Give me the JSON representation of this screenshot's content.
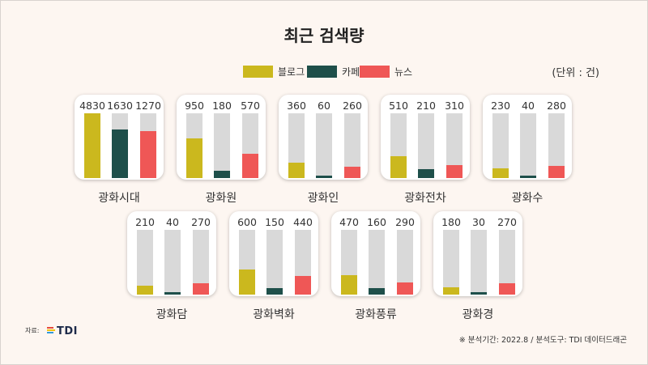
{
  "colors": {
    "blog": "#cbb81e",
    "cafe": "#1e4f4a",
    "news": "#ef5756",
    "track": "#d9d9d9",
    "background": "#fdf6f1"
  },
  "source_label": "자료:",
  "logo_text": "TDI",
  "footnote": "※ 분석기간:  2022.8  / 분석도구: TDI 데이터드래곤",
  "chart_data": {
    "type": "bar",
    "title": "최근 검색량",
    "unit": "(단위 : 건)",
    "legend": [
      "블로그",
      "카페",
      "뉴스"
    ],
    "ylim": [
      0,
      4830
    ],
    "groups": [
      {
        "name": "광화시대",
        "values": [
          4830,
          1630,
          1270
        ]
      },
      {
        "name": "광화원",
        "values": [
          950,
          180,
          570
        ]
      },
      {
        "name": "광화인",
        "values": [
          360,
          60,
          260
        ]
      },
      {
        "name": "광화전차",
        "values": [
          510,
          210,
          310
        ]
      },
      {
        "name": "광화수",
        "values": [
          230,
          40,
          280
        ]
      },
      {
        "name": "광화담",
        "values": [
          210,
          40,
          270
        ]
      },
      {
        "name": "광화벽화",
        "values": [
          600,
          150,
          440
        ]
      },
      {
        "name": "광화풍류",
        "values": [
          470,
          160,
          290
        ]
      },
      {
        "name": "광화경",
        "values": [
          180,
          30,
          270
        ]
      }
    ]
  }
}
